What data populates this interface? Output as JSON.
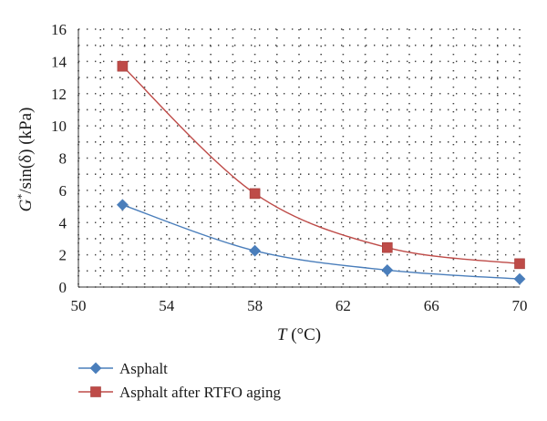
{
  "chart_data": {
    "type": "line",
    "title": "",
    "xlabel": {
      "var": "T",
      "unit": "(°C)"
    },
    "ylabel": {
      "base": "G",
      "sup": "*",
      "rest": "/sin(δ) (kPa)"
    },
    "xlim": [
      50,
      70
    ],
    "ylim": [
      0,
      16
    ],
    "x_ticks": [
      50,
      54,
      58,
      62,
      66,
      70
    ],
    "y_ticks": [
      0,
      2,
      4,
      6,
      8,
      10,
      12,
      14,
      16
    ],
    "grid": true,
    "grid_style": "dotted",
    "legend_position": "bottom-left",
    "series": [
      {
        "name": "Asphalt",
        "color": "#4a7ebb",
        "marker": "diamond",
        "x": [
          52,
          58,
          64,
          70
        ],
        "y": [
          5.1,
          2.25,
          1.05,
          0.5
        ]
      },
      {
        "name": "Asphalt after RTFO aging",
        "color": "#be4b48",
        "marker": "square",
        "x": [
          52,
          58,
          64,
          70
        ],
        "y": [
          13.7,
          5.8,
          2.45,
          1.45
        ]
      }
    ]
  }
}
